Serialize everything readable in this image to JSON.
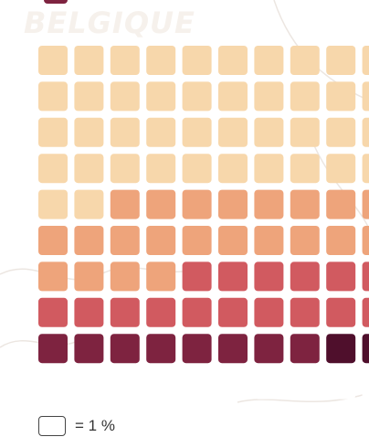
{
  "country_label": "BELGIQUE",
  "legend": {
    "unit_text": "= 1 %"
  },
  "colors": {
    "top_legend_swatch": "#7e2340",
    "map_lines": "#ece6e1",
    "cell_outline": "#444444"
  },
  "chart_data": {
    "type": "waffle",
    "unit": "1 %",
    "columns": 10,
    "rows": 10,
    "categories": [
      {
        "color": "#f7d7ab",
        "count": 42
      },
      {
        "color": "#eea47b",
        "count": 22
      },
      {
        "color": "#d15a60",
        "count": 16
      },
      {
        "color": "#7e2340",
        "count": 8
      },
      {
        "color": "#4f0f2c",
        "count": 2
      }
    ]
  }
}
